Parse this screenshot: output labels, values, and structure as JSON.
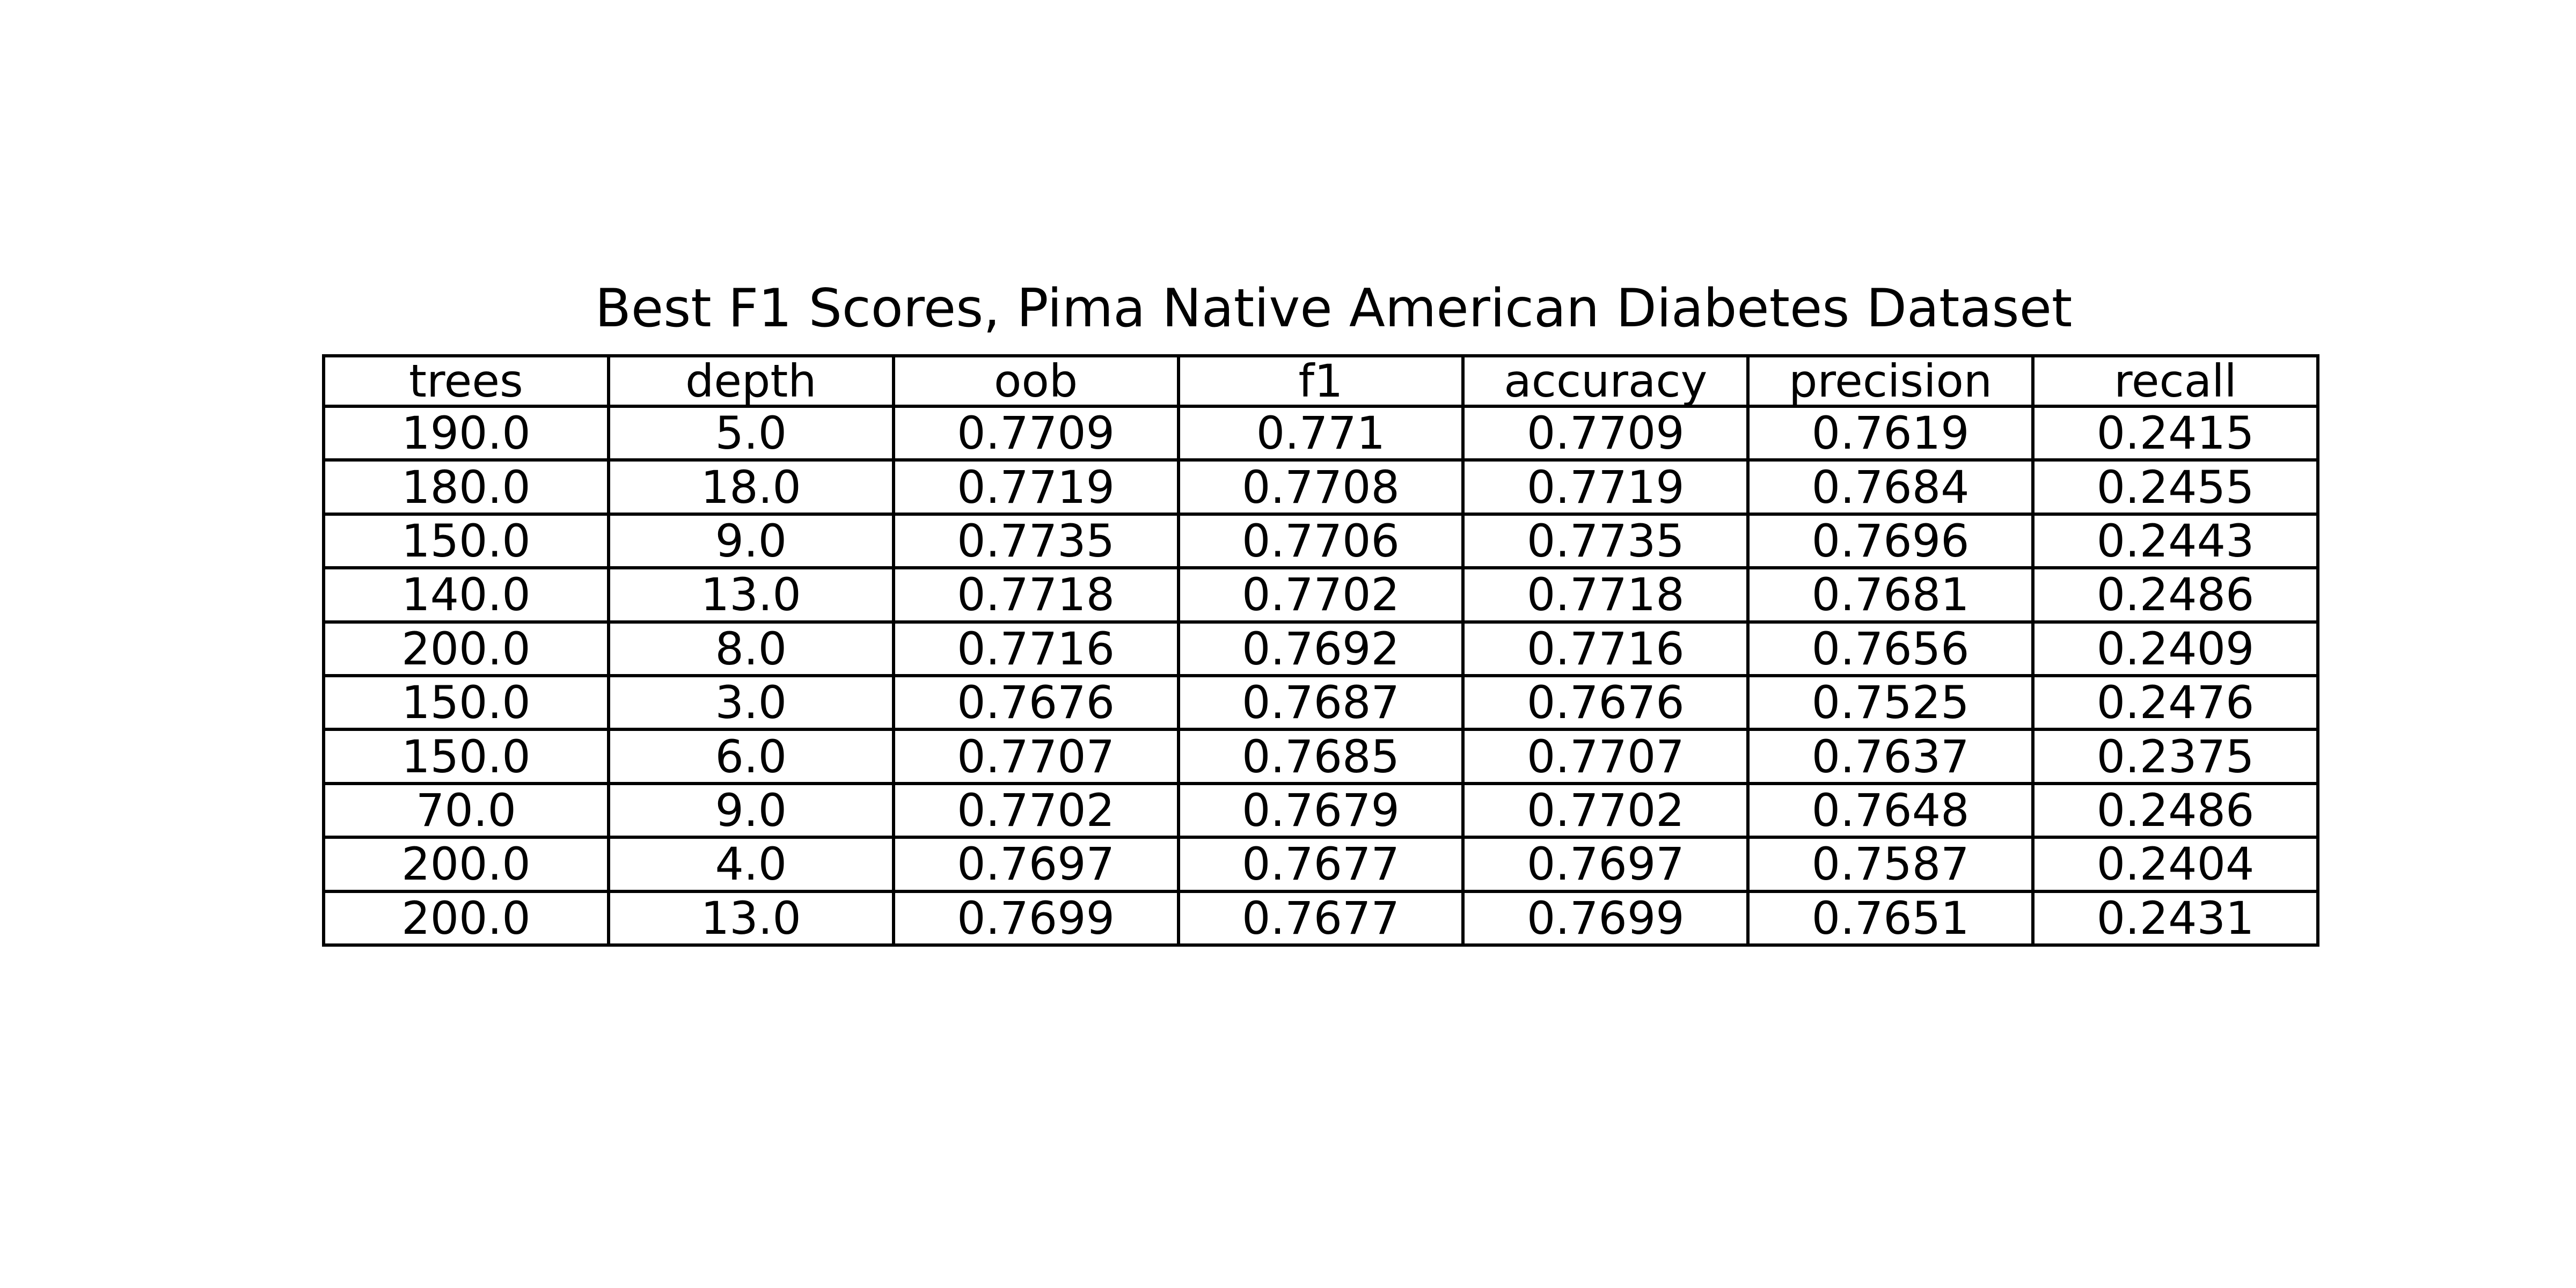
{
  "chart_data": {
    "type": "table",
    "title": "Best F1 Scores, Pima Native American Diabetes Dataset",
    "columns": [
      "trees",
      "depth",
      "oob",
      "f1",
      "accuracy",
      "precision",
      "recall"
    ],
    "rows": [
      [
        "190.0",
        "5.0",
        "0.7709",
        "0.771",
        "0.7709",
        "0.7619",
        "0.2415"
      ],
      [
        "180.0",
        "18.0",
        "0.7719",
        "0.7708",
        "0.7719",
        "0.7684",
        "0.2455"
      ],
      [
        "150.0",
        "9.0",
        "0.7735",
        "0.7706",
        "0.7735",
        "0.7696",
        "0.2443"
      ],
      [
        "140.0",
        "13.0",
        "0.7718",
        "0.7702",
        "0.7718",
        "0.7681",
        "0.2486"
      ],
      [
        "200.0",
        "8.0",
        "0.7716",
        "0.7692",
        "0.7716",
        "0.7656",
        "0.2409"
      ],
      [
        "150.0",
        "3.0",
        "0.7676",
        "0.7687",
        "0.7676",
        "0.7525",
        "0.2476"
      ],
      [
        "150.0",
        "6.0",
        "0.7707",
        "0.7685",
        "0.7707",
        "0.7637",
        "0.2375"
      ],
      [
        "70.0",
        "9.0",
        "0.7702",
        "0.7679",
        "0.7702",
        "0.7648",
        "0.2486"
      ],
      [
        "200.0",
        "4.0",
        "0.7697",
        "0.7677",
        "0.7697",
        "0.7587",
        "0.2404"
      ],
      [
        "200.0",
        "13.0",
        "0.7699",
        "0.7677",
        "0.7699",
        "0.7651",
        "0.2431"
      ]
    ]
  }
}
